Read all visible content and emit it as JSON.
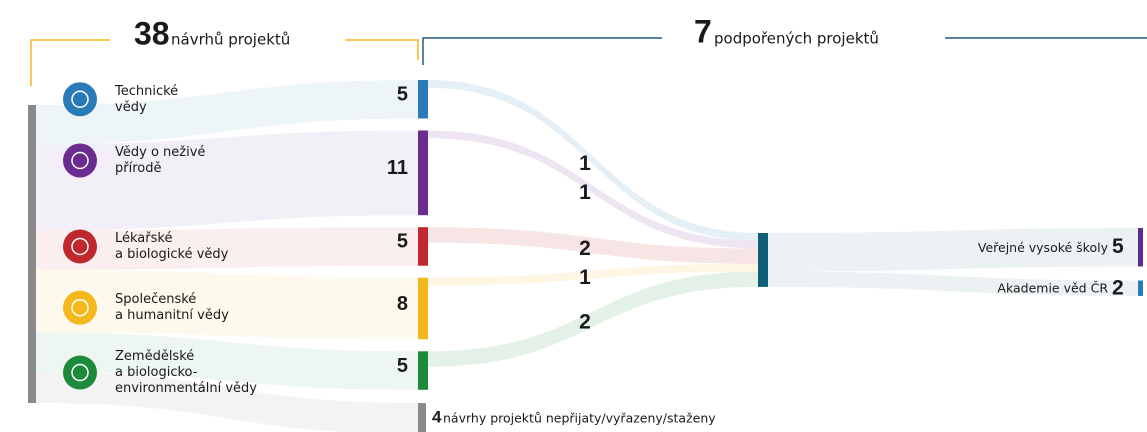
{
  "chart_data": {
    "type": "sankey",
    "total": {
      "value": 38,
      "label": "návrhů projektů",
      "color": "#f5b81c"
    },
    "supported": {
      "value": 7,
      "label": "podpořených projektů",
      "color": "#0f5f78"
    },
    "fields": [
      {
        "lines": [
          "Technické",
          "vědy"
        ],
        "value": 5,
        "flow": 1,
        "color": "#2a7ab8"
      },
      {
        "lines": [
          "Vědy o neživé",
          "přírodě"
        ],
        "value": 11,
        "flow": 1,
        "color": "#6a2d8f"
      },
      {
        "lines": [
          "Lékařské",
          "a biologické vědy"
        ],
        "value": 5,
        "flow": 2,
        "color": "#c0282d"
      },
      {
        "lines": [
          "Společenské",
          "a humanitní vědy"
        ],
        "value": 8,
        "flow": 1,
        "color": "#f5b81c"
      },
      {
        "lines": [
          "Zemědělské",
          "a biologicko-",
          "environmentální vědy"
        ],
        "value": 5,
        "flow": 2,
        "color": "#1e8a3c"
      }
    ],
    "institutions": [
      {
        "name": "Veřejné vysoké školy",
        "value": 5,
        "color": "#5c2d91"
      },
      {
        "name": "Akademie věd ČR",
        "value": 2,
        "color": "#2a7ab8"
      }
    ],
    "rejected": {
      "value": 4,
      "label": "návrhy projektů nepřijaty/vyřazeny/staženy",
      "color": "#8a8a8a"
    }
  }
}
